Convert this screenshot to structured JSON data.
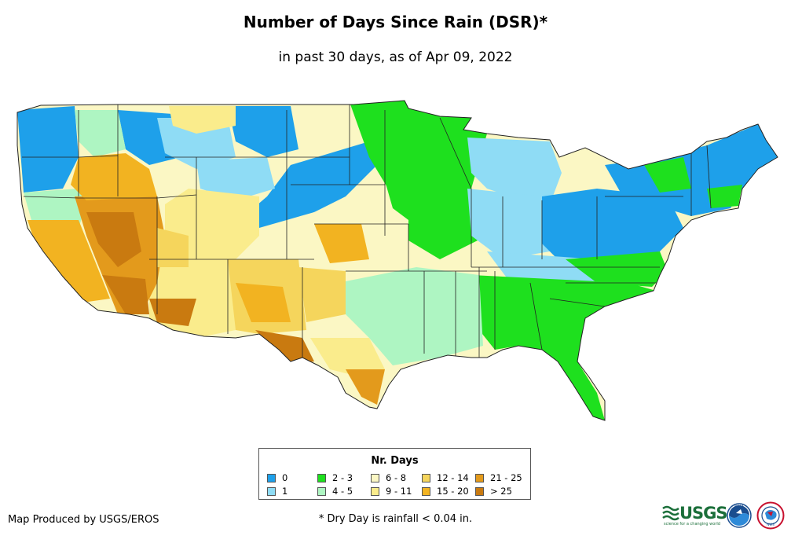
{
  "title": "Number of Days Since Rain (DSR)*",
  "subtitle": "in past 30 days, as of Apr 09, 2022",
  "legend": {
    "title": "Nr. Days",
    "items": [
      {
        "label": "0",
        "color": "#1ea0ea"
      },
      {
        "label": "1",
        "color": "#8fdcf5"
      },
      {
        "label": "2 - 3",
        "color": "#1ee01e"
      },
      {
        "label": "4 - 5",
        "color": "#aef5c2"
      },
      {
        "label": "6 - 8",
        "color": "#fbf7c4"
      },
      {
        "label": "9 - 11",
        "color": "#faec8c"
      },
      {
        "label": "12 - 14",
        "color": "#f5d55c"
      },
      {
        "label": "15 - 20",
        "color": "#f2b321"
      },
      {
        "label": "21 - 25",
        "color": "#e39a1c"
      },
      {
        "label": "> 25",
        "color": "#c97a10"
      }
    ]
  },
  "credit": "Map Produced by USGS/EROS",
  "footnote": "* Dry Day is rainfall < 0.04 in.",
  "logos": {
    "usgs_word": "USGS",
    "usgs_tagline": "science for a changing world",
    "noaa_text": "NOAA",
    "nws_text": "NWS"
  }
}
